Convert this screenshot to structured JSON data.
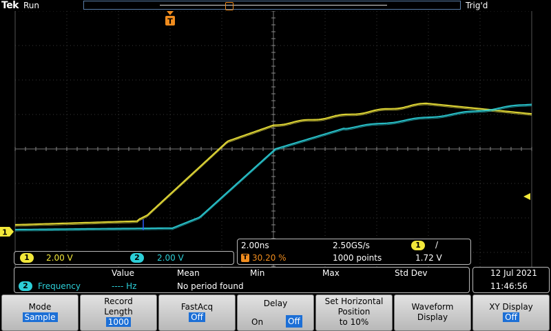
{
  "header": {
    "logo": "Tek",
    "run_state": "Run",
    "trigger_state": "Trig'd",
    "trigger_marker": "T"
  },
  "markers": {
    "ch1_ground": "1"
  },
  "channels": {
    "ch1": {
      "badge": "1",
      "scale": "2.00 V",
      "color": "#f2e83a"
    },
    "ch2": {
      "badge": "2",
      "scale": "2.00 V",
      "color": "#2ccfd8"
    }
  },
  "timebase": {
    "scale": "2.00ns",
    "sample_rate": "2.50GS/s",
    "trigger_position": "30.20 %",
    "record_points": "1000 points",
    "trigger_source": "1",
    "trigger_slope": "/",
    "trigger_level": "1.72 V"
  },
  "measurement": {
    "headers": [
      "Value",
      "Mean",
      "Min",
      "Max",
      "Std Dev"
    ],
    "row": {
      "channel": "2",
      "name": "Frequency",
      "value": "----  Hz",
      "mean": "No period found"
    }
  },
  "datetime": {
    "date": "12 Jul   2021",
    "time": "11:46:56"
  },
  "menu": {
    "mode": {
      "label": "Mode",
      "value": "Sample"
    },
    "record_length": {
      "label1": "Record",
      "label2": "Length",
      "value": "1000"
    },
    "fastacq": {
      "label": "FastAcq",
      "value": "Off"
    },
    "delay": {
      "label": "Delay",
      "on": "On",
      "off": "Off"
    },
    "set_horizontal": {
      "label1": "Set Horizontal",
      "label2": "Position",
      "label3": "to 10%"
    },
    "waveform_display": {
      "label1": "Waveform",
      "label2": "Display"
    },
    "xy_display": {
      "label": "XY Display",
      "value": "Off"
    }
  }
}
